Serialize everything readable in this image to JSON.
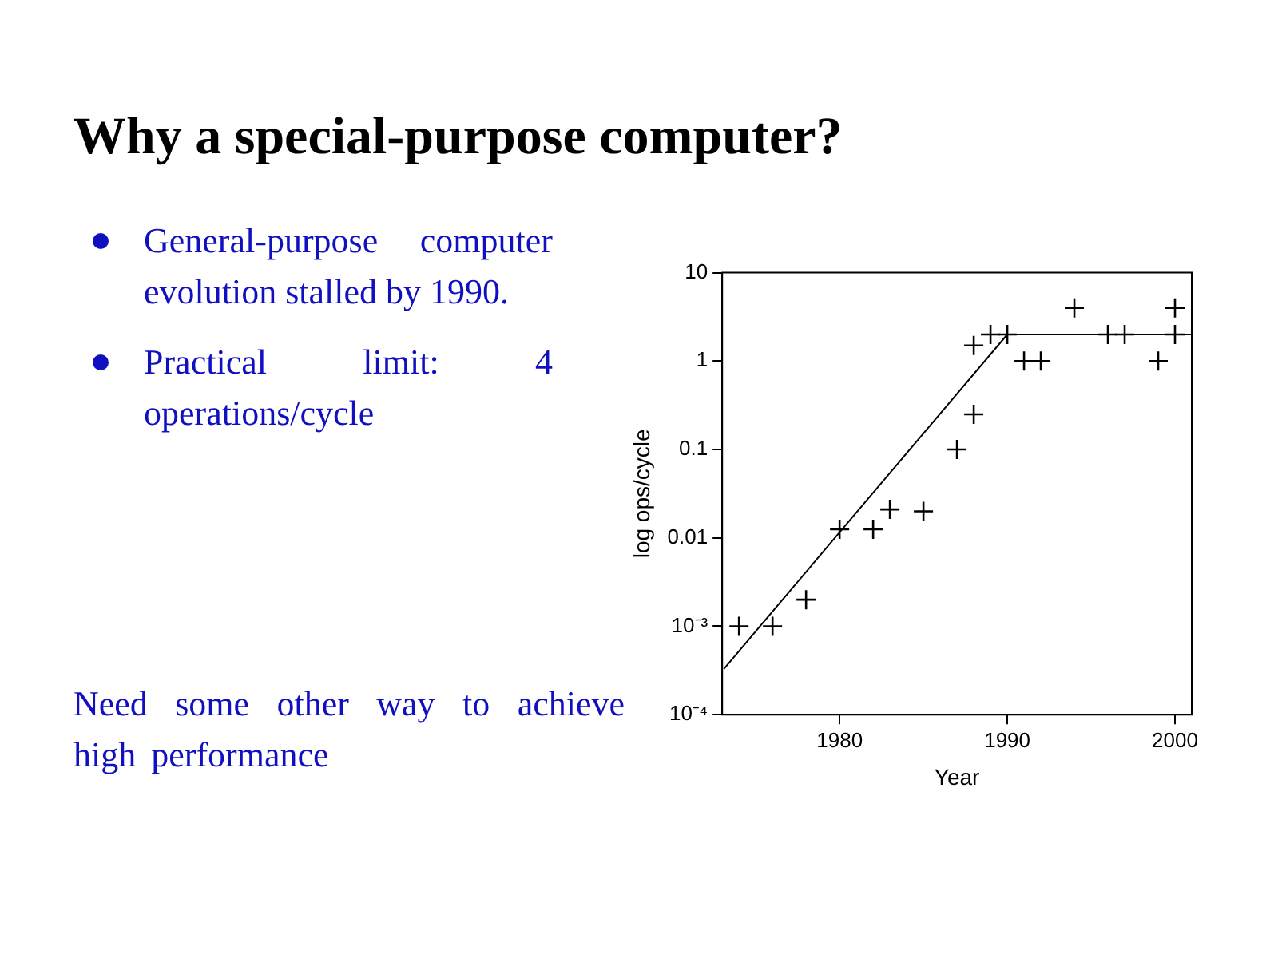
{
  "chart_data": {
    "type": "scatter",
    "title": "Why a special-purpose computer?",
    "xlabel": "Year",
    "ylabel": "log ops/cycle",
    "annotations": [
      "General-purpose computer evolution stalled by 1990.",
      "Practical limit: 4 operations/cycle",
      "Need some other way to achieve high performance"
    ],
    "log": "y",
    "grid": false,
    "legend": false,
    "marker": "cross",
    "xlim": [
      1973,
      2001
    ],
    "xticks": [
      1980,
      1990,
      2000
    ],
    "ylim": [
      0.0001,
      10
    ],
    "yticks": [
      {
        "value": 0.0001,
        "label": "10⁻⁴"
      },
      {
        "value": 0.001,
        "label": "10⁻³"
      },
      0.01,
      0.1,
      1,
      10
    ],
    "series": [
      {
        "type": "scatter",
        "color": "#000000",
        "x": [
          1974,
          1976,
          1978,
          1980,
          1982,
          1983,
          1985,
          1987,
          1988,
          1988,
          1989,
          1990,
          1991,
          1992,
          1994,
          1996,
          1997,
          1999,
          2000,
          2000
        ],
        "values": [
          0.001,
          0.001,
          0.002,
          0.0125,
          0.0125,
          0.021,
          0.02,
          0.1,
          0.25,
          1.5,
          2,
          2,
          1,
          1,
          4,
          2,
          2,
          1,
          2,
          4
        ]
      },
      {
        "type": "line",
        "color": "#000000",
        "marker": "none",
        "x": [
          1973.1,
          1990,
          2001
        ],
        "values": [
          0.00033,
          2,
          2
        ]
      }
    ]
  }
}
